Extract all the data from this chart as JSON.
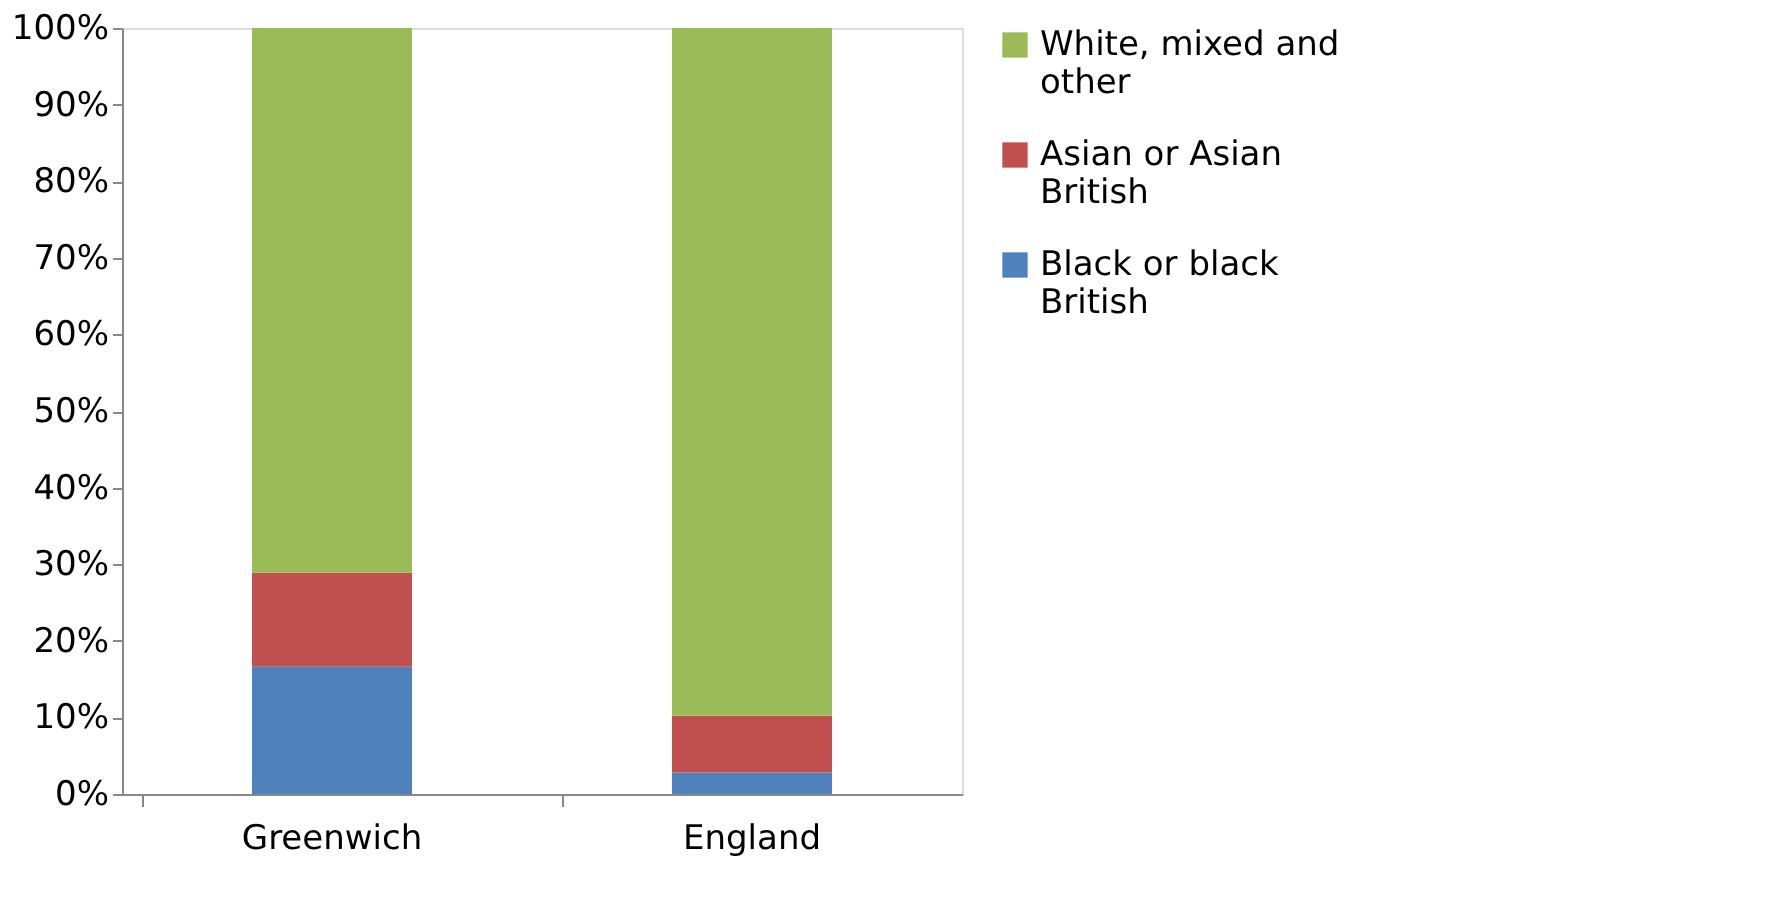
{
  "chart_data": {
    "type": "bar",
    "stacked": true,
    "categories": [
      "Greenwich",
      "England"
    ],
    "series": [
      {
        "name": "Black or black British",
        "color": "#4f81bd",
        "values": [
          16.6,
          2.8
        ]
      },
      {
        "name": "Asian or Asian British",
        "color": "#c0504d",
        "values": [
          12.3,
          7.4
        ]
      },
      {
        "name": "White, mixed and other",
        "color": "#9bbb59",
        "values": [
          71.1,
          89.8
        ]
      }
    ],
    "ylim": [
      0,
      100
    ],
    "yticks": [
      {
        "value": 0,
        "label": "0%"
      },
      {
        "value": 10,
        "label": "10%"
      },
      {
        "value": 20,
        "label": "20%"
      },
      {
        "value": 30,
        "label": "30%"
      },
      {
        "value": 40,
        "label": "40%"
      },
      {
        "value": 50,
        "label": "50%"
      },
      {
        "value": 60,
        "label": "60%"
      },
      {
        "value": 70,
        "label": "70%"
      },
      {
        "value": 80,
        "label": "80%"
      },
      {
        "value": 90,
        "label": "90%"
      },
      {
        "value": 100,
        "label": "100%"
      }
    ],
    "grid": false,
    "legend": "right"
  }
}
